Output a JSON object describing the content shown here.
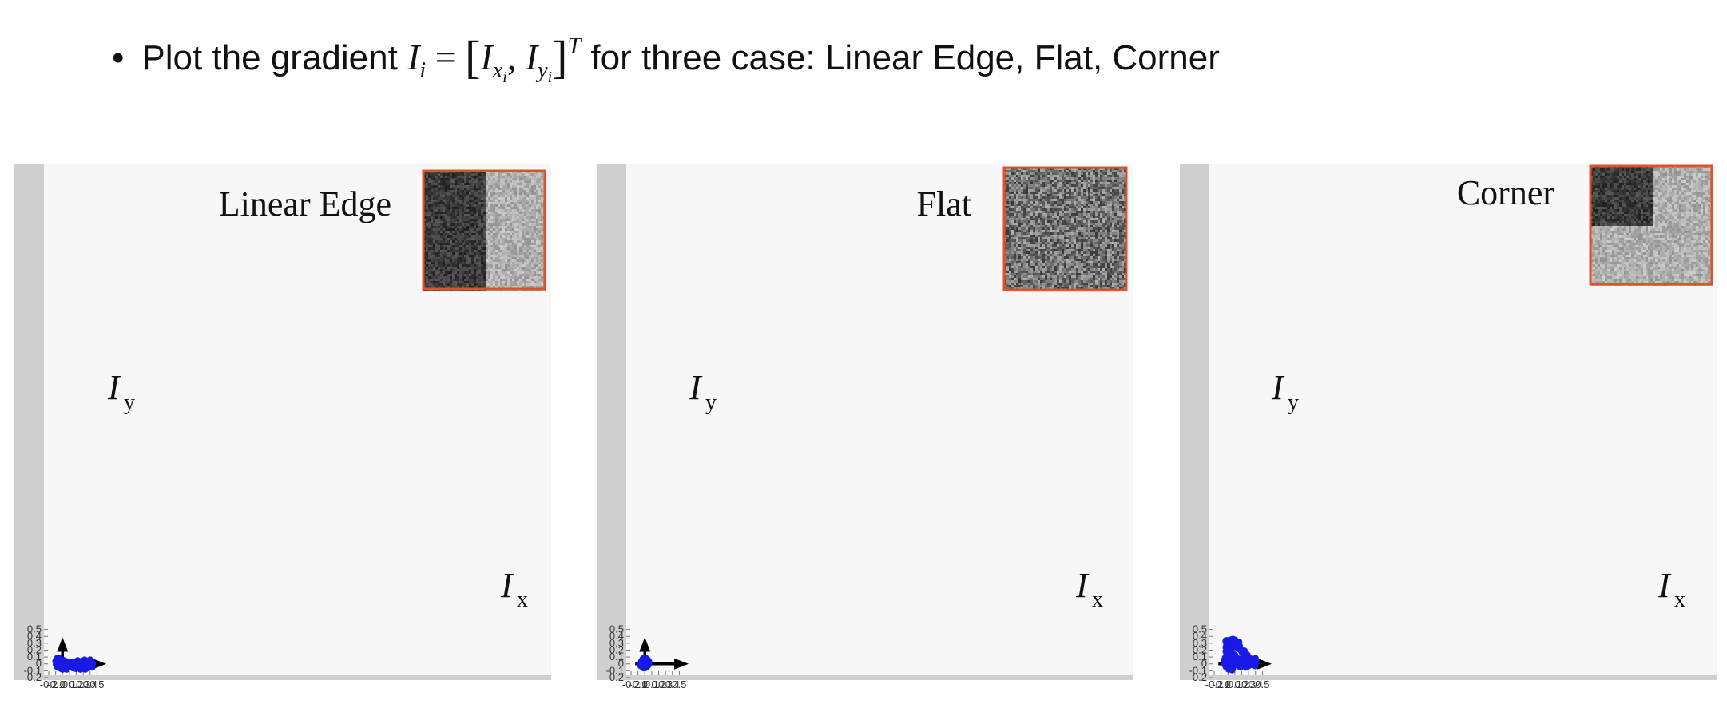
{
  "headline": {
    "bullet": "•",
    "lead": "Plot the gradient",
    "math_I": "I",
    "math_i": "i",
    "math_eq": " = ",
    "math_open": "[",
    "math_Ix": "I",
    "math_x": "x",
    "math_xi": "i",
    "math_comma": ", ",
    "math_Iy": "I",
    "math_y": "y",
    "math_yi": "i",
    "math_close": "]",
    "math_T": "T",
    "tail": " for three case: Linear Edge, Flat, Corner"
  },
  "colors": {
    "points": "#1a1ae6",
    "plot_bg": "#f7f7f7",
    "frame": "#cfcfcf",
    "thumb_border": "#e0502a"
  },
  "chart_data": [
    {
      "type": "scatter",
      "title": "Linear Edge",
      "xlabel": "Ix",
      "ylabel": "Iy",
      "xlim": [
        -0.2,
        0.55
      ],
      "ylim": [
        -0.2,
        0.55
      ],
      "xticks": [
        "-0.2",
        "-0.1",
        "0",
        "0.1",
        "0.2",
        "0.3",
        "0.4",
        "0.5"
      ],
      "yticks": [
        "-0.2",
        "-0.1",
        "0",
        "0.1",
        "0.2",
        "0.3",
        "0.4",
        "0.5"
      ],
      "thumbnail": "edge",
      "points": [
        [
          -0.1,
          0.04
        ],
        [
          -0.09,
          0.06
        ],
        [
          -0.08,
          0.08
        ],
        [
          -0.07,
          0.07
        ],
        [
          -0.06,
          0.09
        ],
        [
          -0.05,
          0.05
        ],
        [
          -0.04,
          0.08
        ],
        [
          -0.03,
          0.06
        ],
        [
          -0.02,
          0.07
        ],
        [
          -0.01,
          0.05
        ],
        [
          0.0,
          0.06
        ],
        [
          0.01,
          0.04
        ],
        [
          0.02,
          0.05
        ],
        [
          0.03,
          0.03
        ],
        [
          0.04,
          0.04
        ],
        [
          0.05,
          0.02
        ],
        [
          0.06,
          0.03
        ],
        [
          -0.09,
          -0.02
        ],
        [
          -0.08,
          -0.04
        ],
        [
          -0.07,
          0.0
        ],
        [
          -0.06,
          -0.05
        ],
        [
          -0.05,
          -0.02
        ],
        [
          -0.04,
          -0.06
        ],
        [
          -0.03,
          -0.03
        ],
        [
          -0.02,
          -0.07
        ],
        [
          -0.01,
          -0.05
        ],
        [
          0.0,
          -0.08
        ],
        [
          0.01,
          -0.06
        ],
        [
          0.02,
          -0.04
        ],
        [
          0.03,
          -0.05
        ],
        [
          0.04,
          -0.03
        ],
        [
          0.05,
          -0.06
        ],
        [
          0.06,
          -0.02
        ],
        [
          -0.08,
          0.02
        ],
        [
          -0.07,
          0.03
        ],
        [
          -0.06,
          0.01
        ],
        [
          -0.05,
          0.0
        ],
        [
          -0.04,
          0.02
        ],
        [
          -0.03,
          -0.01
        ],
        [
          -0.02,
          0.01
        ],
        [
          -0.01,
          0.0
        ],
        [
          0.0,
          0.02
        ],
        [
          0.01,
          -0.01
        ],
        [
          0.02,
          0.01
        ],
        [
          0.03,
          0.0
        ],
        [
          0.04,
          0.01
        ],
        [
          0.05,
          -0.01
        ],
        [
          -0.03,
          0.03
        ],
        [
          -0.02,
          -0.02
        ],
        [
          -0.01,
          0.03
        ],
        [
          0.0,
          -0.02
        ],
        [
          0.01,
          0.02
        ],
        [
          0.02,
          -0.02
        ],
        [
          -0.04,
          -0.01
        ],
        [
          0.03,
          -0.02
        ],
        [
          -0.01,
          -0.03
        ],
        [
          0.0,
          0.04
        ],
        [
          0.07,
          -0.04
        ],
        [
          0.08,
          0.01
        ],
        [
          0.09,
          -0.03
        ],
        [
          0.1,
          0.02
        ],
        [
          0.11,
          -0.05
        ],
        [
          0.12,
          0.0
        ],
        [
          0.13,
          -0.02
        ],
        [
          0.14,
          0.03
        ],
        [
          0.15,
          -0.06
        ],
        [
          0.16,
          0.02
        ],
        [
          0.17,
          -0.04
        ],
        [
          0.18,
          0.01
        ],
        [
          0.19,
          -0.07
        ],
        [
          0.2,
          0.0
        ],
        [
          0.21,
          0.03
        ],
        [
          0.22,
          -0.05
        ],
        [
          0.23,
          0.02
        ],
        [
          0.24,
          -0.03
        ],
        [
          0.25,
          0.01
        ],
        [
          0.26,
          -0.08
        ],
        [
          0.27,
          -0.02
        ],
        [
          0.28,
          0.04
        ],
        [
          0.29,
          -0.06
        ],
        [
          0.3,
          0.01
        ],
        [
          0.31,
          -0.04
        ],
        [
          0.32,
          0.06
        ],
        [
          0.33,
          -0.08
        ],
        [
          0.34,
          0.0
        ],
        [
          0.35,
          -0.03
        ],
        [
          0.36,
          0.03
        ],
        [
          0.37,
          -0.06
        ],
        [
          0.38,
          0.02
        ],
        [
          0.39,
          0.04
        ],
        [
          0.4,
          0.06
        ],
        [
          0.41,
          0.03
        ],
        [
          0.42,
          -0.02
        ],
        [
          0.43,
          -0.05
        ],
        [
          0.44,
          0.01
        ],
        [
          0.41,
          0.05
        ],
        [
          0.3,
          -0.05
        ],
        [
          0.22,
          0.05
        ],
        [
          0.15,
          0.02
        ],
        [
          0.33,
          0.04
        ],
        [
          0.06,
          -0.08
        ],
        [
          0.11,
          0.02
        ],
        [
          0.27,
          -0.07
        ],
        [
          0.36,
          -0.02
        ],
        [
          0.19,
          -0.02
        ]
      ]
    },
    {
      "type": "scatter",
      "title": "Flat",
      "xlabel": "Ix",
      "ylabel": "Iy",
      "xlim": [
        -0.2,
        0.55
      ],
      "ylim": [
        -0.2,
        0.55
      ],
      "xticks": [
        "-0.2",
        "-0.1",
        "0",
        "0.1",
        "0.2",
        "0.3",
        "0.4",
        "0.5"
      ],
      "yticks": [
        "-0.2",
        "-0.1",
        "0",
        "0.1",
        "0.2",
        "0.3",
        "0.4",
        "0.5"
      ],
      "thumbnail": "flat",
      "points": [
        [
          -0.05,
          0.02
        ],
        [
          -0.04,
          0.05
        ],
        [
          -0.03,
          0.07
        ],
        [
          -0.02,
          0.08
        ],
        [
          -0.01,
          0.06
        ],
        [
          0.0,
          0.07
        ],
        [
          0.01,
          0.05
        ],
        [
          0.02,
          0.08
        ],
        [
          0.03,
          0.06
        ],
        [
          0.04,
          0.04
        ],
        [
          0.05,
          0.05
        ],
        [
          0.06,
          0.03
        ],
        [
          -0.06,
          0.0
        ],
        [
          -0.05,
          -0.02
        ],
        [
          -0.04,
          -0.04
        ],
        [
          -0.03,
          -0.05
        ],
        [
          -0.02,
          -0.06
        ],
        [
          -0.01,
          -0.04
        ],
        [
          0.0,
          -0.06
        ],
        [
          0.01,
          -0.05
        ],
        [
          0.02,
          -0.03
        ],
        [
          0.03,
          -0.04
        ],
        [
          0.04,
          -0.02
        ],
        [
          0.05,
          0.0
        ],
        [
          -0.04,
          0.01
        ],
        [
          -0.03,
          0.03
        ],
        [
          -0.02,
          0.02
        ],
        [
          -0.01,
          0.04
        ],
        [
          0.0,
          0.03
        ],
        [
          0.01,
          0.02
        ],
        [
          0.02,
          0.04
        ],
        [
          0.03,
          0.01
        ],
        [
          0.04,
          0.02
        ],
        [
          -0.03,
          -0.01
        ],
        [
          -0.02,
          -0.02
        ],
        [
          -0.01,
          0.0
        ],
        [
          0.0,
          -0.01
        ],
        [
          0.01,
          0.0
        ],
        [
          0.02,
          -0.01
        ],
        [
          0.03,
          -0.02
        ],
        [
          -0.02,
          0.05
        ],
        [
          0.0,
          0.05
        ],
        [
          0.02,
          0.06
        ],
        [
          -0.04,
          -0.03
        ],
        [
          0.01,
          -0.03
        ],
        [
          0.03,
          0.03
        ],
        [
          -0.05,
          0.04
        ],
        [
          0.05,
          -0.02
        ],
        [
          -0.01,
          -0.03
        ],
        [
          0.06,
          0.01
        ],
        [
          -0.06,
          -0.03
        ],
        [
          0.04,
          0.06
        ],
        [
          -0.03,
          0.06
        ],
        [
          0.02,
          -0.05
        ],
        [
          -0.02,
          -0.04
        ],
        [
          0.0,
          0.01
        ],
        [
          -0.01,
          0.02
        ],
        [
          0.01,
          0.04
        ],
        [
          0.03,
          -0.01
        ],
        [
          0.05,
          0.04
        ]
      ]
    },
    {
      "type": "scatter",
      "title": "Corner",
      "xlabel": "Ix",
      "ylabel": "Iy",
      "xlim": [
        -0.2,
        0.55
      ],
      "ylim": [
        -0.2,
        0.55
      ],
      "xticks": [
        "-0.2",
        "-0.1",
        "0",
        "0.1",
        "0.2",
        "0.3",
        "0.4",
        "0.5"
      ],
      "yticks": [
        "-0.2",
        "-0.1",
        "0",
        "0.1",
        "0.2",
        "0.3",
        "0.4",
        "0.5"
      ],
      "thumbnail": "corner",
      "points": [
        [
          -0.03,
          0.34
        ],
        [
          -0.02,
          0.34
        ],
        [
          -0.01,
          0.34
        ],
        [
          0.0,
          0.34
        ],
        [
          -0.03,
          0.32
        ],
        [
          -0.02,
          0.31
        ],
        [
          -0.01,
          0.3
        ],
        [
          0.0,
          0.31
        ],
        [
          0.02,
          0.34
        ],
        [
          0.04,
          0.35
        ],
        [
          0.07,
          0.36
        ],
        [
          0.1,
          0.35
        ],
        [
          0.12,
          0.33
        ],
        [
          0.14,
          0.3
        ],
        [
          0.16,
          0.32
        ],
        [
          -0.02,
          0.27
        ],
        [
          -0.01,
          0.25
        ],
        [
          0.02,
          0.28
        ],
        [
          0.04,
          0.27
        ],
        [
          0.07,
          0.28
        ],
        [
          0.09,
          0.26
        ],
        [
          0.11,
          0.25
        ],
        [
          0.13,
          0.27
        ],
        [
          0.15,
          0.22
        ],
        [
          0.17,
          0.26
        ],
        [
          0.19,
          0.2
        ],
        [
          0.2,
          0.17
        ],
        [
          0.22,
          0.14
        ],
        [
          0.24,
          0.19
        ],
        [
          0.25,
          0.12
        ],
        [
          0.27,
          0.1
        ],
        [
          0.28,
          0.13
        ],
        [
          -0.03,
          0.24
        ],
        [
          -0.02,
          0.22
        ],
        [
          -0.01,
          0.2
        ],
        [
          0.0,
          0.22
        ],
        [
          -0.03,
          0.18
        ],
        [
          -0.02,
          0.15
        ],
        [
          -0.01,
          0.13
        ],
        [
          0.0,
          0.16
        ],
        [
          0.02,
          0.19
        ],
        [
          0.04,
          0.2
        ],
        [
          0.06,
          0.17
        ],
        [
          0.03,
          0.14
        ],
        [
          0.07,
          0.15
        ],
        [
          0.08,
          0.12
        ],
        [
          0.1,
          0.13
        ],
        [
          0.12,
          0.1
        ],
        [
          0.14,
          0.07
        ],
        [
          0.16,
          0.05
        ],
        [
          0.18,
          0.07
        ],
        [
          0.2,
          0.06
        ],
        [
          0.22,
          0.04
        ],
        [
          0.24,
          0.07
        ],
        [
          0.26,
          0.02
        ],
        [
          0.28,
          0.05
        ],
        [
          0.3,
          0.03
        ],
        [
          0.32,
          0.08
        ],
        [
          0.33,
          0.02
        ],
        [
          0.34,
          -0.01
        ],
        [
          0.35,
          0.04
        ],
        [
          0.36,
          0.07
        ],
        [
          0.37,
          -0.02
        ],
        [
          0.38,
          0.01
        ],
        [
          0.39,
          -0.03
        ],
        [
          0.4,
          0.06
        ],
        [
          0.41,
          0.02
        ],
        [
          0.4,
          0.08
        ],
        [
          -0.05,
          0.06
        ],
        [
          -0.04,
          0.08
        ],
        [
          -0.03,
          0.05
        ],
        [
          -0.02,
          0.07
        ],
        [
          -0.01,
          0.04
        ],
        [
          0.0,
          0.06
        ],
        [
          0.01,
          0.03
        ],
        [
          0.02,
          0.05
        ],
        [
          0.03,
          0.02
        ],
        [
          0.04,
          0.03
        ],
        [
          0.05,
          0.01
        ],
        [
          -0.06,
          0.02
        ],
        [
          -0.05,
          0.0
        ],
        [
          -0.04,
          -0.02
        ],
        [
          -0.03,
          -0.04
        ],
        [
          -0.02,
          -0.05
        ],
        [
          -0.01,
          -0.03
        ],
        [
          0.0,
          -0.06
        ],
        [
          0.01,
          -0.04
        ],
        [
          0.02,
          -0.07
        ],
        [
          0.03,
          -0.05
        ],
        [
          0.04,
          -0.08
        ],
        [
          0.05,
          -0.06
        ],
        [
          0.06,
          -0.09
        ],
        [
          0.07,
          -0.07
        ],
        [
          -0.04,
          0.01
        ],
        [
          -0.03,
          0.0
        ],
        [
          -0.02,
          0.02
        ],
        [
          -0.01,
          -0.01
        ],
        [
          0.0,
          0.01
        ],
        [
          0.01,
          -0.02
        ],
        [
          0.02,
          0.0
        ],
        [
          0.03,
          -0.03
        ],
        [
          0.04,
          -0.01
        ],
        [
          0.05,
          -0.04
        ],
        [
          0.06,
          -0.02
        ],
        [
          -0.03,
          0.1
        ],
        [
          -0.02,
          0.12
        ],
        [
          -0.04,
          0.09
        ],
        [
          0.0,
          0.1
        ],
        [
          0.08,
          0.0
        ],
        [
          0.1,
          -0.02
        ],
        [
          0.12,
          0.02
        ],
        [
          0.15,
          -0.01
        ],
        [
          0.18,
          -0.05
        ],
        [
          0.21,
          0.01
        ],
        [
          0.26,
          -0.05
        ],
        [
          0.3,
          -0.03
        ],
        [
          0.02,
          0.1
        ],
        [
          0.06,
          0.08
        ],
        [
          0.09,
          0.05
        ],
        [
          0.11,
          0.08
        ],
        [
          0.01,
          -0.08
        ],
        [
          0.03,
          0.08
        ],
        [
          -0.01,
          0.09
        ],
        [
          0.05,
          0.05
        ]
      ]
    }
  ]
}
